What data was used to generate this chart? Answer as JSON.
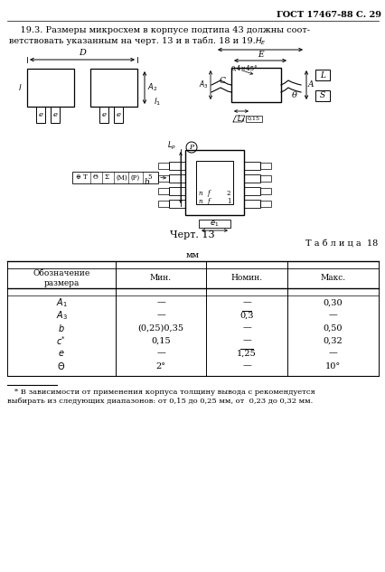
{
  "title_right": "ГОСТ 17467-88 С. 29",
  "paragraph_line1": "    19.3. Размеры микросхем в корпусе подтипа 43 должны соот-",
  "paragraph_line2": "ветствовать указанным на черт. 13 и в табл. 18 и 19.",
  "chert_label": "Черт. 13",
  "table_title": "Т а б л и ц а  18",
  "table_mm": "мм",
  "col_headers": [
    "Обозначение\nразмера",
    "Мин.",
    "Номин.",
    "Макс."
  ],
  "row_col0": [
    "A1",
    "A3",
    "b",
    "c*",
    "e",
    "θ"
  ],
  "row_col1": [
    "—",
    "—",
    "(0,25)0,35",
    "0,15",
    "—",
    "2°"
  ],
  "row_col2": [
    "—",
    "0,3",
    "—",
    "—",
    "1,25",
    "—"
  ],
  "row_col3": [
    "0,30",
    "—",
    "0,50",
    "0,32",
    "—",
    "10°"
  ],
  "nominal_overline": [
    1,
    4
  ],
  "footnote_line1": "   * В зависимости от применения корпуса толщину вывода c рекомендуется",
  "footnote_line2": "выбирать из следующих диапазонов: от 0,15 до 0,25 мм, от  0,23 до 0,32 мм.",
  "bg_color": "#ffffff",
  "text_color": "#000000"
}
